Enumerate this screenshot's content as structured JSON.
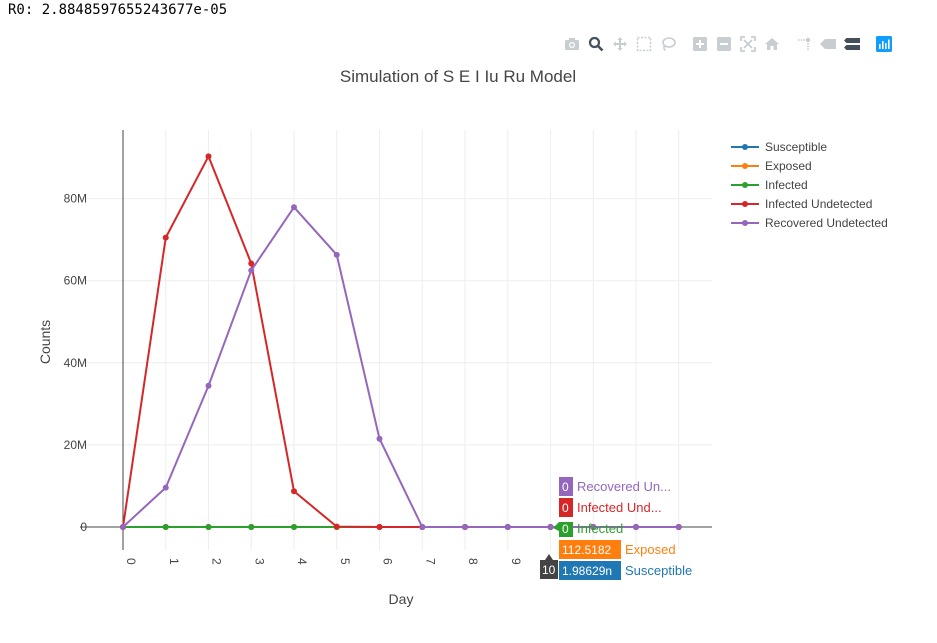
{
  "header": {
    "r0_text": "R0: 2.8848597655243677e-05"
  },
  "modebar": [
    {
      "name": "camera-icon"
    },
    {
      "name": "zoom-icon"
    },
    {
      "name": "pan-icon"
    },
    {
      "name": "box-select-icon"
    },
    {
      "name": "lasso-select-icon"
    },
    {
      "name": "zoom-in-icon"
    },
    {
      "name": "zoom-out-icon"
    },
    {
      "name": "autoscale-icon"
    },
    {
      "name": "reset-axes-icon"
    },
    {
      "name": "spike-lines-icon"
    },
    {
      "name": "hover-closest-icon"
    },
    {
      "name": "hover-compare-icon"
    },
    {
      "name": "plotly-logo-icon"
    }
  ],
  "chart_data": {
    "type": "line",
    "title": "Simulation of S E I Iu Ru Model",
    "xlabel": "Day",
    "ylabel": "Counts",
    "x": [
      0,
      1,
      2,
      3,
      4,
      5,
      6,
      7,
      8,
      9,
      10,
      11,
      12,
      13
    ],
    "xtick_labels": [
      "0",
      "1",
      "2",
      "3",
      "4",
      "5",
      "6",
      "7",
      "8",
      "9"
    ],
    "ytick_labels": [
      "0",
      "20M",
      "40M",
      "60M",
      "80M"
    ],
    "ytick_values": [
      0,
      20000000,
      40000000,
      60000000,
      80000000
    ],
    "xlim": [
      -0.02,
      13.8
    ],
    "ylim": [
      -3200000,
      96000000
    ],
    "grid": true,
    "legend_position": "top-right",
    "series": [
      {
        "name": "Susceptible",
        "color": "#1f77b4",
        "values": [
          0,
          0,
          0,
          0,
          0,
          0,
          0,
          0,
          0,
          0,
          0,
          0,
          0,
          0
        ]
      },
      {
        "name": "Exposed",
        "color": "#ff7f0e",
        "values": [
          0,
          0,
          0,
          0,
          0,
          0,
          0,
          0,
          0,
          0,
          112.5182,
          0,
          0,
          0
        ]
      },
      {
        "name": "Infected",
        "color": "#2ca02c",
        "values": [
          0,
          0,
          0,
          0,
          0,
          0,
          0,
          0,
          0,
          0,
          0,
          0,
          0,
          0
        ]
      },
      {
        "name": "Infected Undetected",
        "color": "#d62728",
        "values": [
          0,
          70500000,
          90300000,
          64200000,
          8700000,
          100000,
          0,
          0,
          0,
          0,
          0,
          0,
          0,
          0
        ]
      },
      {
        "name": "Recovered Undetected",
        "color": "#9467bd",
        "values": [
          0,
          9600000,
          34400000,
          62500000,
          77900000,
          66300000,
          21500000,
          0,
          0,
          0,
          0,
          0,
          0,
          0
        ]
      }
    ],
    "hover": {
      "x_label": "10",
      "items": [
        {
          "series": "Recovered Undetected",
          "value": "0",
          "label": "Recovered Un...",
          "color": "#9467bd"
        },
        {
          "series": "Infected Undetected",
          "value": "0",
          "label": "Infected Und...",
          "color": "#d62728"
        },
        {
          "series": "Infected",
          "value": "0",
          "label": "Infected",
          "color": "#2ca02c"
        },
        {
          "series": "Exposed",
          "value": "112.5182",
          "label": "Exposed",
          "color": "#ff7f0e"
        },
        {
          "series": "Susceptible",
          "value": "1.98629n",
          "label": "Susceptible",
          "color": "#1f77b4"
        }
      ]
    }
  }
}
